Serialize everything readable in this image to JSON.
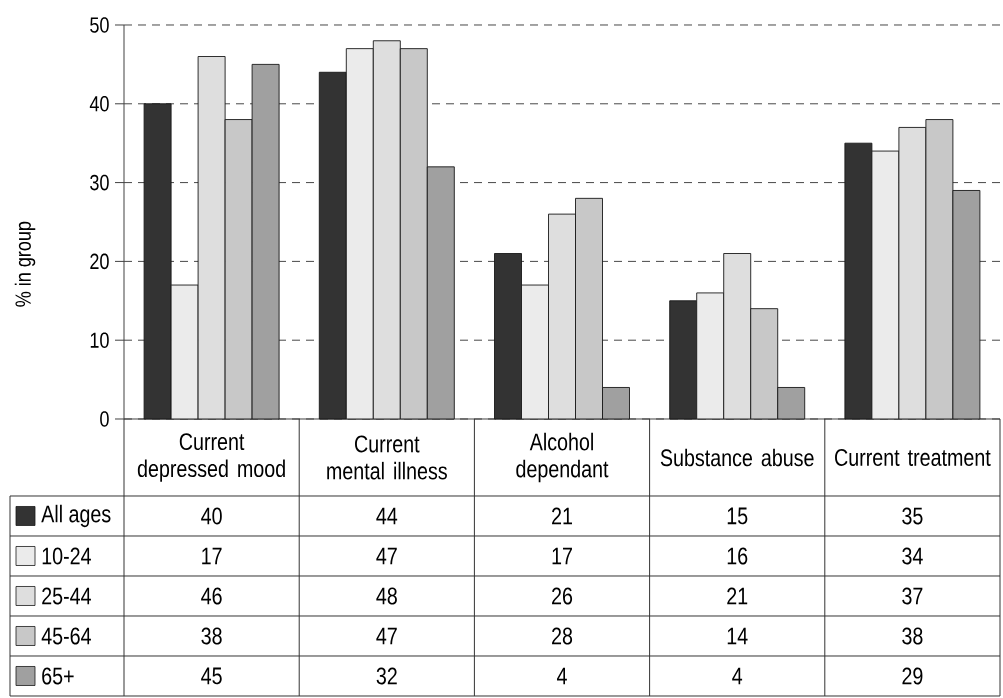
{
  "chart_data": {
    "type": "bar",
    "ylabel": "% in group",
    "categories": [
      "Current depressed mood",
      "Current mental illness",
      "Alcohol dependant",
      "Substance abuse",
      "Current treatment"
    ],
    "series": [
      {
        "name": "All ages",
        "color": "#333333",
        "values": [
          40,
          44,
          21,
          15,
          35
        ]
      },
      {
        "name": "10-24",
        "color": "#ebebeb",
        "values": [
          17,
          47,
          17,
          16,
          34
        ]
      },
      {
        "name": "25-44",
        "color": "#dedede",
        "values": [
          46,
          48,
          26,
          21,
          37
        ]
      },
      {
        "name": "45-64",
        "color": "#c8c8c8",
        "values": [
          38,
          47,
          28,
          14,
          38
        ]
      },
      {
        "name": "65+",
        "color": "#a0a0a0",
        "values": [
          45,
          32,
          4,
          4,
          29
        ]
      }
    ],
    "ylim": [
      0,
      50
    ],
    "yticks": [
      0,
      10,
      20,
      30,
      40,
      50
    ],
    "grid": "y",
    "legend": "bottom left",
    "data_labels": true
  }
}
